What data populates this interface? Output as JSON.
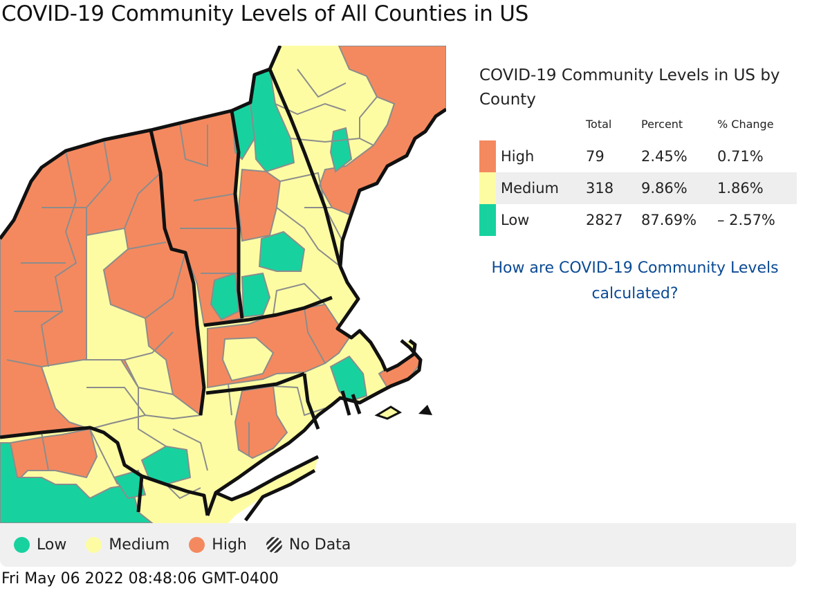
{
  "page": {
    "title": "COVID-19 Community Levels of All Counties in US"
  },
  "colors": {
    "high": "#f4895f",
    "medium": "#fdfca3",
    "low": "#17d29f",
    "state_border": "#111111",
    "county_border": "#8c8c8c",
    "link": "#0b4a94",
    "legend_bg": "#f0f0f0"
  },
  "panel": {
    "title": "COVID-19 Community Levels in US by County",
    "columns": {
      "total": "Total",
      "percent": "Percent",
      "change": "% Change"
    },
    "rows": [
      {
        "key": "high",
        "level": "High",
        "total": "79",
        "percent": "2.45%",
        "change": "0.71%"
      },
      {
        "key": "medium",
        "level": "Medium",
        "total": "318",
        "percent": "9.86%",
        "change": "1.86%"
      },
      {
        "key": "low",
        "level": "Low",
        "total": "2827",
        "percent": "87.69%",
        "change": "– 2.57%"
      }
    ],
    "help_link": "How are COVID-19 Community Levels calculated?"
  },
  "legend": {
    "items": [
      {
        "key": "low",
        "label": "Low"
      },
      {
        "key": "medium",
        "label": "Medium"
      },
      {
        "key": "high",
        "label": "High"
      },
      {
        "key": "nodata",
        "label": "No Data"
      }
    ]
  },
  "footer": {
    "timestamp": "Fri May 06 2022 08:48:06 GMT-0400"
  }
}
